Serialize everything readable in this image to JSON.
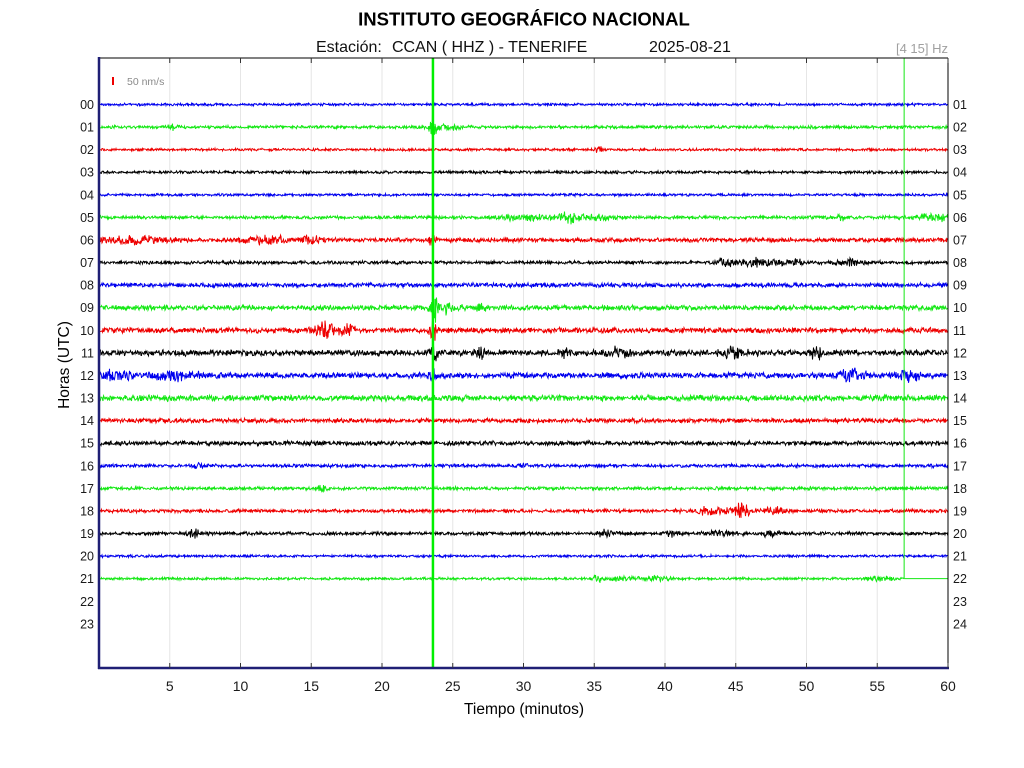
{
  "chart_data": {
    "type": "line",
    "title": "INSTITUTO GEOGRÁFICO NACIONAL",
    "station_label": "Estación:",
    "station": "CCAN ( HHZ ) - TENERIFE",
    "date": "2025-08-21",
    "filter": "[4 15] Hz",
    "xlabel": "Tiempo (minutos)",
    "ylabel": "Horas (UTC)",
    "xlim": [
      0,
      60
    ],
    "xticks": [
      5,
      10,
      15,
      20,
      25,
      30,
      35,
      40,
      45,
      50,
      55,
      60
    ],
    "left_ticks": [
      "00",
      "01",
      "02",
      "03",
      "04",
      "05",
      "06",
      "07",
      "08",
      "09",
      "10",
      "11",
      "12",
      "13",
      "14",
      "15",
      "16",
      "17",
      "18",
      "19",
      "20",
      "21",
      "22",
      "23"
    ],
    "right_ticks": [
      "01",
      "02",
      "03",
      "04",
      "05",
      "06",
      "07",
      "08",
      "09",
      "10",
      "11",
      "12",
      "13",
      "14",
      "15",
      "16",
      "17",
      "18",
      "19",
      "20",
      "21",
      "22",
      "23",
      "24"
    ],
    "grid": true,
    "scale": {
      "label": "50 nm/s",
      "value": 50,
      "color": "#ee0000"
    },
    "markers": [
      {
        "minute": 23.6,
        "color": "#00f000"
      }
    ],
    "current_time": {
      "minute": 56.9,
      "row": 21,
      "color": "#14e814"
    },
    "series": [
      {
        "color": "#0000ee",
        "noise": 9,
        "bursts": []
      },
      {
        "color": "#14e814",
        "noise": 11,
        "bursts": [
          {
            "center": 5.3,
            "duration": 0.4,
            "amplitude": 19
          },
          {
            "center": 23.6,
            "duration": 0.25,
            "amplitude": 75
          },
          {
            "center": 24.6,
            "duration": 0.8,
            "amplitude": 19
          }
        ]
      },
      {
        "color": "#ee0000",
        "noise": 9,
        "bursts": [
          {
            "center": 35.3,
            "duration": 0.3,
            "amplitude": 19
          }
        ]
      },
      {
        "color": "#000000",
        "noise": 10,
        "bursts": []
      },
      {
        "color": "#0000ee",
        "noise": 9,
        "bursts": []
      },
      {
        "color": "#14e814",
        "noise": 12,
        "bursts": [
          {
            "center": 30,
            "duration": 1.5,
            "amplitude": 22
          },
          {
            "center": 33.2,
            "duration": 1.1,
            "amplitude": 34
          },
          {
            "center": 35.6,
            "duration": 0.8,
            "amplitude": 19
          },
          {
            "center": 52.5,
            "duration": 0.3,
            "amplitude": 19
          },
          {
            "center": 59.2,
            "duration": 1.4,
            "amplitude": 22
          }
        ]
      },
      {
        "color": "#ee0000",
        "noise": 15,
        "bursts": [
          {
            "center": 2.5,
            "duration": 2.5,
            "amplitude": 22
          },
          {
            "center": 12,
            "duration": 1.6,
            "amplitude": 25
          },
          {
            "center": 15,
            "duration": 0.8,
            "amplitude": 25
          },
          {
            "center": 23.6,
            "duration": 0.25,
            "amplitude": 50
          }
        ]
      },
      {
        "color": "#000000",
        "noise": 12,
        "bursts": [
          {
            "center": 44.2,
            "duration": 0.6,
            "amplitude": 31
          },
          {
            "center": 46.6,
            "duration": 1.1,
            "amplitude": 25
          },
          {
            "center": 49,
            "duration": 1,
            "amplitude": 19
          },
          {
            "center": 53,
            "duration": 1,
            "amplitude": 19
          }
        ]
      },
      {
        "color": "#0000ee",
        "noise": 16,
        "bursts": []
      },
      {
        "color": "#14e814",
        "noise": 18,
        "bursts": [
          {
            "center": 23.7,
            "duration": 0.3,
            "amplitude": 100
          },
          {
            "center": 24.6,
            "duration": 0.8,
            "amplitude": 31
          },
          {
            "center": 27,
            "duration": 0.3,
            "amplitude": 25
          }
        ]
      },
      {
        "color": "#ee0000",
        "noise": 19,
        "bursts": [
          {
            "center": 16,
            "duration": 0.7,
            "amplitude": 50
          },
          {
            "center": 17.6,
            "duration": 0.7,
            "amplitude": 31
          },
          {
            "center": 23.6,
            "duration": 0.3,
            "amplitude": 62
          }
        ]
      },
      {
        "color": "#000000",
        "noise": 21,
        "bursts": [
          {
            "center": 23.6,
            "duration": 0.3,
            "amplitude": 62
          },
          {
            "center": 27,
            "duration": 0.4,
            "amplitude": 31
          },
          {
            "center": 32.8,
            "duration": 0.4,
            "amplitude": 31
          },
          {
            "center": 36.5,
            "duration": 1,
            "amplitude": 28
          },
          {
            "center": 44.8,
            "duration": 0.8,
            "amplitude": 37
          },
          {
            "center": 50.8,
            "duration": 0.5,
            "amplitude": 37
          }
        ]
      },
      {
        "color": "#0000ee",
        "noise": 21,
        "bursts": [
          {
            "center": 1.3,
            "duration": 0.8,
            "amplitude": 37
          },
          {
            "center": 5.5,
            "duration": 1.5,
            "amplitude": 25
          },
          {
            "center": 23.6,
            "duration": 0.3,
            "amplitude": 37
          },
          {
            "center": 53.2,
            "duration": 1,
            "amplitude": 34
          },
          {
            "center": 57.3,
            "duration": 0.6,
            "amplitude": 44
          }
        ]
      },
      {
        "color": "#14e814",
        "noise": 22,
        "bursts": []
      },
      {
        "color": "#ee0000",
        "noise": 16,
        "bursts": []
      },
      {
        "color": "#000000",
        "noise": 16,
        "bursts": []
      },
      {
        "color": "#0000ee",
        "noise": 12,
        "bursts": [
          {
            "center": 7,
            "duration": 0.3,
            "amplitude": 25
          },
          {
            "center": 29.9,
            "duration": 0.3,
            "amplitude": 19
          }
        ]
      },
      {
        "color": "#14e814",
        "noise": 12,
        "bursts": [
          {
            "center": 15.8,
            "duration": 0.3,
            "amplitude": 19
          }
        ]
      },
      {
        "color": "#ee0000",
        "noise": 12,
        "bursts": [
          {
            "center": 43,
            "duration": 1.5,
            "amplitude": 22
          },
          {
            "center": 45.4,
            "duration": 0.6,
            "amplitude": 50
          },
          {
            "center": 47.6,
            "duration": 0.7,
            "amplitude": 25
          }
        ]
      },
      {
        "color": "#000000",
        "noise": 12,
        "bursts": [
          {
            "center": 6.8,
            "duration": 0.5,
            "amplitude": 37
          },
          {
            "center": 35.8,
            "duration": 0.5,
            "amplitude": 28
          },
          {
            "center": 40.5,
            "duration": 0.4,
            "amplitude": 19
          },
          {
            "center": 44,
            "duration": 1,
            "amplitude": 19
          },
          {
            "center": 47.6,
            "duration": 0.7,
            "amplitude": 25
          }
        ]
      },
      {
        "color": "#0000ee",
        "noise": 9,
        "bursts": []
      },
      {
        "color": "#14e814",
        "noise": 9,
        "end": 56.9,
        "bursts": [
          {
            "center": 35.2,
            "duration": 0.3,
            "amplitude": 25
          },
          {
            "center": 37,
            "duration": 1,
            "amplitude": 16
          },
          {
            "center": 39.5,
            "duration": 0.8,
            "amplitude": 16
          },
          {
            "center": 55.3,
            "duration": 0.8,
            "amplitude": 16
          }
        ]
      }
    ]
  }
}
